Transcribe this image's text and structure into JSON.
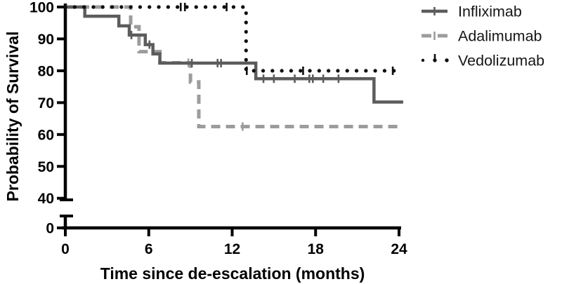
{
  "figure": {
    "background": "#ffffff",
    "axis_color": "#000000"
  },
  "chart_data": {
    "type": "line",
    "subtype": "kaplan-meier-step",
    "title": "",
    "xlabel": "Time since de-escalation (months)",
    "ylabel": "Probability of Survival",
    "x_ticks": [
      0,
      6,
      12,
      18,
      24
    ],
    "y_ticks": [
      100,
      90,
      80,
      70,
      60,
      50,
      40,
      0
    ],
    "xlim": [
      0,
      24
    ],
    "ylim_upper_segment": [
      40,
      100
    ],
    "y_axis_break": true,
    "y_axis_break_between": [
      0,
      40
    ],
    "grid": false,
    "legend_position": "right-top",
    "series": [
      {
        "name": "Infliximab",
        "style": "solid",
        "color": "#5c5c5c",
        "start_value": 100,
        "steps": [
          [
            1.4,
            97.1
          ],
          [
            3.85,
            94.1
          ],
          [
            4.6,
            91.2
          ],
          [
            5.75,
            88.2
          ],
          [
            6.3,
            85.3
          ],
          [
            6.8,
            82.4
          ],
          [
            13.7,
            77.5
          ],
          [
            22.2,
            70.2
          ]
        ],
        "end_x": 24.3,
        "censor_marks": [
          [
            4.75,
            91.2
          ],
          [
            6.05,
            88.2
          ],
          [
            9.1,
            82.4
          ],
          [
            10.95,
            82.4
          ],
          [
            11.2,
            82.4
          ],
          [
            14.25,
            77.5
          ],
          [
            15.0,
            77.5
          ],
          [
            16.5,
            77.5
          ],
          [
            17.55,
            77.5
          ],
          [
            17.8,
            77.5
          ],
          [
            18.55,
            77.5
          ],
          [
            19.65,
            77.5
          ]
        ]
      },
      {
        "name": "Adalimumab",
        "style": "dashed",
        "color": "#9c9c9c",
        "start_value": 100,
        "steps": [
          [
            4.7,
            93.8
          ],
          [
            5.3,
            86.0
          ],
          [
            6.8,
            82.5
          ],
          [
            9.0,
            76.5
          ],
          [
            9.6,
            62.5
          ]
        ],
        "end_x": 24.1,
        "censor_marks": [
          [
            8.85,
            82.5
          ],
          [
            12.75,
            62.5
          ]
        ]
      },
      {
        "name": "Vedolizumab",
        "style": "dotted",
        "color": "#0e0e0e",
        "start_value": 100,
        "steps": [
          [
            13.0,
            80.0
          ]
        ],
        "end_x": 24.25,
        "censor_marks": [
          [
            8.3,
            100
          ],
          [
            8.6,
            100
          ],
          [
            11.6,
            100
          ],
          [
            13.05,
            80
          ],
          [
            17.1,
            80
          ],
          [
            23.55,
            80
          ]
        ]
      }
    ]
  }
}
